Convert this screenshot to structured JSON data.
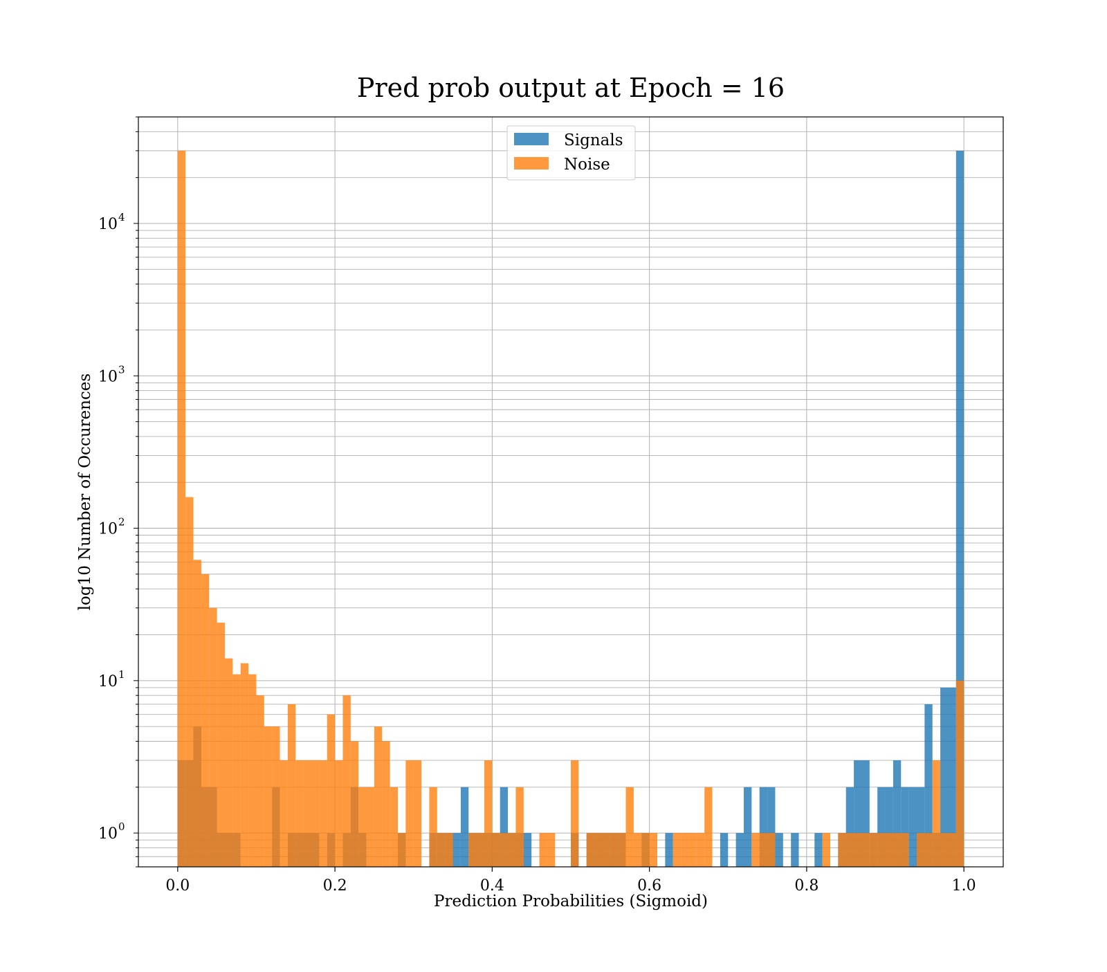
{
  "chart_data": {
    "type": "histogram",
    "title": "Pred prob output at Epoch = 16",
    "xlabel": "Prediction Probabilities (Sigmoid)",
    "ylabel": "log10 Number of Occurences",
    "x_scale": "linear",
    "y_scale": "log",
    "xlim": [
      -0.05,
      1.05
    ],
    "ylim": [
      0.6,
      50000
    ],
    "x_ticks": [
      0.0,
      0.2,
      0.4,
      0.6,
      0.8,
      1.0
    ],
    "x_tick_labels": [
      "0.0",
      "0.2",
      "0.4",
      "0.6",
      "0.8",
      "1.0"
    ],
    "y_ticks": [
      1,
      10,
      100,
      1000,
      10000
    ],
    "y_tick_labels": [
      {
        "base": "10",
        "exp": "0"
      },
      {
        "base": "10",
        "exp": "1"
      },
      {
        "base": "10",
        "exp": "2"
      },
      {
        "base": "10",
        "exp": "3"
      },
      {
        "base": "10",
        "exp": "4"
      }
    ],
    "grid": true,
    "legend_position": "upper center",
    "bins": {
      "start": 0.0,
      "width": 0.01,
      "count": 100
    },
    "series": [
      {
        "name": "Signals",
        "color": "#1f77b4",
        "alpha": 0.8,
        "counts": [
          3,
          3,
          5,
          2,
          2,
          1,
          1,
          1,
          0,
          0,
          0,
          0,
          2,
          0,
          1,
          1,
          1,
          1,
          0,
          1,
          0,
          1,
          2,
          1,
          0,
          0,
          0,
          0,
          1,
          0,
          0,
          0,
          1,
          1,
          1,
          1,
          2,
          1,
          1,
          1,
          1,
          2,
          1,
          1,
          1,
          0,
          0,
          0,
          0,
          0,
          1,
          0,
          1,
          1,
          1,
          1,
          1,
          0,
          0,
          1,
          0,
          0,
          1,
          0,
          0,
          0,
          0,
          0,
          0,
          1,
          0,
          1,
          2,
          0,
          2,
          2,
          1,
          0,
          1,
          0,
          0,
          1,
          0,
          0,
          1,
          2,
          3,
          3,
          1,
          2,
          2,
          3,
          2,
          2,
          2,
          7,
          1,
          9,
          9,
          30000
        ]
      },
      {
        "name": "Noise",
        "color": "#ff7f0e",
        "alpha": 0.8,
        "counts": [
          30000,
          160,
          62,
          50,
          30,
          24,
          14,
          11,
          13,
          11,
          8,
          5,
          5,
          3,
          7,
          3,
          3,
          3,
          3,
          6,
          3,
          8,
          4,
          2,
          2,
          5,
          4,
          2,
          1,
          3,
          3,
          0,
          2,
          1,
          1,
          0,
          0,
          1,
          1,
          3,
          1,
          1,
          1,
          2,
          0,
          0,
          1,
          1,
          0,
          0,
          3,
          0,
          1,
          1,
          1,
          1,
          1,
          2,
          1,
          1,
          1,
          0,
          0,
          1,
          1,
          1,
          1,
          2,
          0,
          0,
          0,
          0,
          0,
          1,
          1,
          1,
          0,
          0,
          0,
          0,
          0,
          0,
          1,
          0,
          1,
          1,
          1,
          1,
          1,
          1,
          1,
          1,
          1,
          0,
          1,
          1,
          3,
          1,
          1,
          10
        ]
      }
    ]
  },
  "chart_data_overrides": {
    "noise_last_bin_note": ""
  }
}
